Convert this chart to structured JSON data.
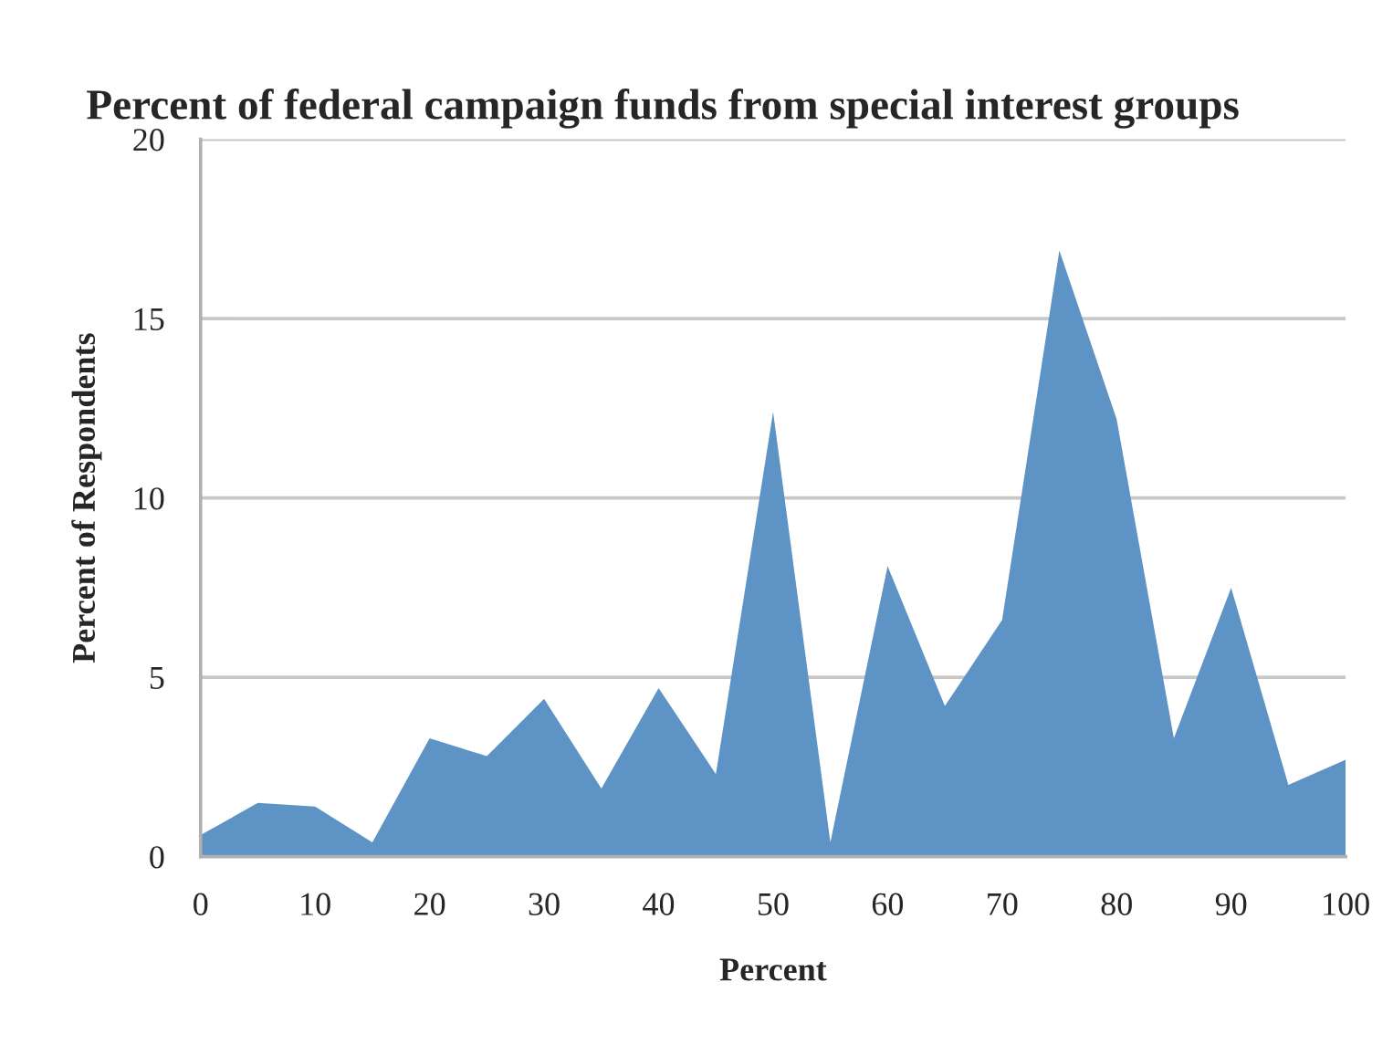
{
  "chart_data": {
    "type": "area",
    "title": "Percent of federal campaign funds from special interest groups",
    "xlabel": "Percent",
    "ylabel": "Percent of Respondents",
    "categories": [
      "0",
      null,
      "10",
      null,
      "20",
      null,
      "30",
      null,
      "40",
      null,
      "50",
      null,
      "60",
      null,
      "70",
      null,
      "80",
      null,
      "90",
      null,
      "100"
    ],
    "series": [
      {
        "color": "#5e93c6",
        "values": [
          0.6,
          1.5,
          1.4,
          0.4,
          3.3,
          2.8,
          4.4,
          1.9,
          4.7,
          2.3,
          12.4,
          0.4,
          8.1,
          4.2,
          6.6,
          16.9,
          12.2,
          3.3,
          7.5,
          2.0,
          2.7
        ]
      }
    ],
    "ylim": [
      0,
      20
    ],
    "yticks": [
      0,
      5,
      10,
      15,
      20
    ],
    "grid": "y",
    "legend": false
  }
}
